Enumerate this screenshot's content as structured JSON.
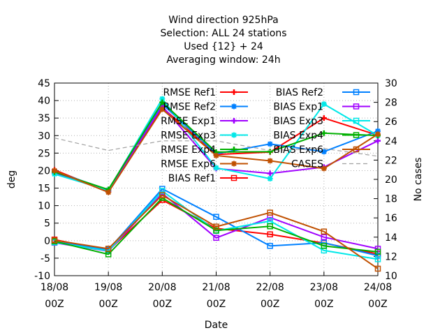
{
  "chart_data": {
    "type": "line",
    "title_lines": [
      "Wind direction 925hPa",
      "Selection: ALL      24 stations",
      "Used {12} + 24",
      "Averaging window: 24h"
    ],
    "xlabel": "Date",
    "ylabel": "deg",
    "y2label": "No cases",
    "categories": [
      [
        "18/08",
        "00Z"
      ],
      [
        "19/08",
        "00Z"
      ],
      [
        "20/08",
        "00Z"
      ],
      [
        "21/08",
        "00Z"
      ],
      [
        "22/08",
        "00Z"
      ],
      [
        "23/08",
        "00Z"
      ],
      [
        "24/08",
        "00Z"
      ]
    ],
    "ylim": [
      -10,
      45
    ],
    "yticks": [
      -10,
      -5,
      0,
      5,
      10,
      15,
      20,
      25,
      30,
      35,
      40,
      45
    ],
    "y2lim": [
      10,
      30
    ],
    "y2ticks": [
      10,
      12,
      14,
      16,
      18,
      20,
      22,
      24,
      26,
      28,
      30
    ],
    "grid": true,
    "legend_position": "top-right",
    "series": [
      {
        "name": "RMSE Ref1",
        "color": "#ff0000",
        "marker": "plus",
        "values": [
          20.2,
          14.0,
          38.0,
          24.6,
          25.3,
          35.0,
          30.1
        ]
      },
      {
        "name": "RMSE Ref2",
        "color": "#0080ff",
        "marker": "star",
        "values": [
          19.8,
          14.5,
          39.0,
          24.8,
          27.6,
          25.4,
          31.3
        ]
      },
      {
        "name": "RMSE Exp1",
        "color": "#a000ff",
        "marker": "plus",
        "values": [
          19.4,
          14.2,
          38.4,
          20.6,
          19.2,
          21.0,
          28.5
        ]
      },
      {
        "name": "RMSE Exp3",
        "color": "#00e8e8",
        "marker": "star",
        "values": [
          19.0,
          14.4,
          40.5,
          20.8,
          17.7,
          39.0,
          30.0
        ]
      },
      {
        "name": "RMSE Exp4",
        "color": "#00b000",
        "marker": "plus",
        "values": [
          19.6,
          14.6,
          39.5,
          25.3,
          25.4,
          30.7,
          30.0
        ]
      },
      {
        "name": "RMSE Exp6",
        "color": "#c05000",
        "marker": "star",
        "values": [
          20.0,
          13.8,
          37.5,
          24.3,
          22.8,
          20.6,
          30.4
        ]
      },
      {
        "name": "BIAS Ref1",
        "color": "#ff0000",
        "marker": "square",
        "values": [
          0.3,
          -2.8,
          11.6,
          3.5,
          1.8,
          -0.7,
          -3.8
        ]
      },
      {
        "name": "BIAS Ref2",
        "color": "#0080ff",
        "marker": "square",
        "values": [
          -0.3,
          -2.6,
          14.8,
          6.8,
          -1.5,
          -0.6,
          -4.3
        ]
      },
      {
        "name": "BIAS Exp1",
        "color": "#a000ff",
        "marker": "square",
        "values": [
          -0.6,
          -3.0,
          13.5,
          0.8,
          6.6,
          1.0,
          -2.3
        ]
      },
      {
        "name": "BIAS Exp3",
        "color": "#00e8e8",
        "marker": "square",
        "values": [
          -0.5,
          -2.9,
          14.2,
          2.8,
          5.6,
          -2.8,
          -5.3
        ]
      },
      {
        "name": "BIAS Exp4",
        "color": "#00b000",
        "marker": "square",
        "values": [
          -0.2,
          -3.9,
          12.2,
          2.9,
          4.1,
          -1.5,
          -3.2
        ]
      },
      {
        "name": "BIAS Exp6",
        "color": "#c05000",
        "marker": "square",
        "values": [
          0.1,
          -2.3,
          13.0,
          4.0,
          8.0,
          2.6,
          -8.0
        ]
      },
      {
        "name": "CASES",
        "color": "#a0a0a0",
        "marker": "none",
        "dashed": true,
        "axis": "y2",
        "values": [
          24.3,
          23.0,
          24.0,
          24.0,
          23.0,
          23.2,
          22.4
        ]
      }
    ]
  }
}
